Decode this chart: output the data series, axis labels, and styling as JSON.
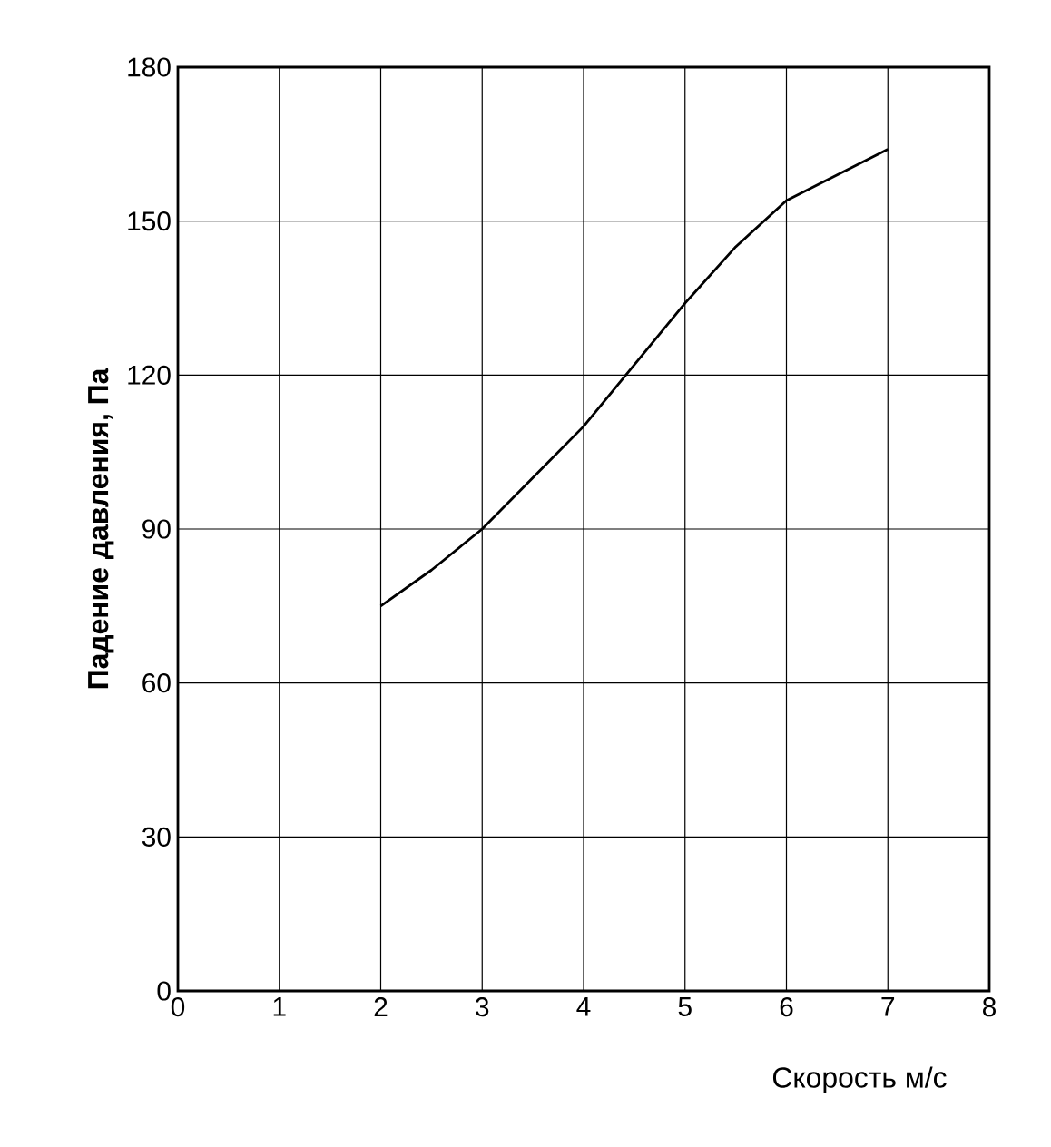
{
  "chart_data": {
    "type": "line",
    "xlabel": "Скорость м/с",
    "ylabel": "Падение давления, Па",
    "x": [
      2,
      2.5,
      3,
      3.5,
      4,
      4.5,
      5,
      5.5,
      6,
      6.5,
      7
    ],
    "series": [
      {
        "color": "#000000",
        "values": [
          75,
          82,
          90,
          100,
          110,
          122,
          134,
          145,
          154,
          159,
          164
        ]
      }
    ],
    "xlim": [
      0,
      8
    ],
    "xticks": [
      0,
      1,
      2,
      3,
      4,
      5,
      6,
      7,
      8
    ],
    "ylim": [
      0,
      180
    ],
    "yticks": [
      0,
      30,
      60,
      90,
      120,
      150,
      180
    ],
    "grid": true,
    "marker": "none",
    "line_style": "solid"
  }
}
